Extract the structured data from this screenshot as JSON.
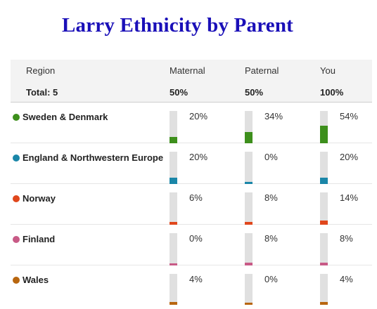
{
  "title": "Larry Ethnicity by Parent",
  "header": {
    "region_label": "Region",
    "maternal_label": "Maternal",
    "paternal_label": "Paternal",
    "you_label": "You",
    "total_label": "Total: 5",
    "maternal_total": "50%",
    "paternal_total": "50%",
    "you_total": "100%"
  },
  "rows": [
    {
      "name": "Sweden & Denmark",
      "color": "#3d8f1c",
      "maternal": "20%",
      "paternal": "34%",
      "you": "54%",
      "maternal_val": 20,
      "paternal_val": 34,
      "you_val": 54
    },
    {
      "name": "England & Northwestern Europe",
      "color": "#1a86a8",
      "maternal": "20%",
      "paternal": "0%",
      "you": "20%",
      "maternal_val": 20,
      "paternal_val": 0,
      "you_val": 20
    },
    {
      "name": "Norway",
      "color": "#e0471c",
      "maternal": "6%",
      "paternal": "8%",
      "you": "14%",
      "maternal_val": 6,
      "paternal_val": 8,
      "you_val": 14
    },
    {
      "name": "Finland",
      "color": "#c85a86",
      "maternal": "0%",
      "paternal": "8%",
      "you": "8%",
      "maternal_val": 0,
      "paternal_val": 8,
      "you_val": 8
    },
    {
      "name": "Wales",
      "color": "#b8660f",
      "maternal": "4%",
      "paternal": "0%",
      "you": "4%",
      "maternal_val": 4,
      "paternal_val": 0,
      "you_val": 4
    }
  ]
}
